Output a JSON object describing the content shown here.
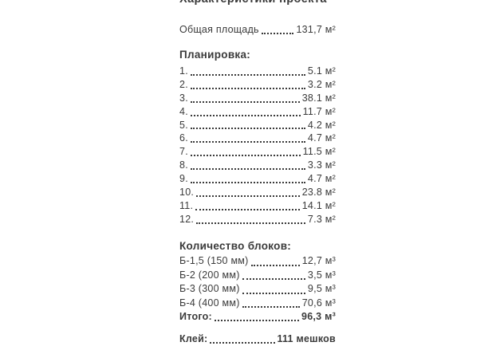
{
  "colors": {
    "text": "#3a3a3a",
    "background": "#ffffff"
  },
  "title": "Характеристики проекта",
  "total_area": {
    "label": "Общая площадь",
    "value": "131,7 м²"
  },
  "planning": {
    "heading": "Планировка:",
    "items": [
      {
        "label": "1.",
        "value": "5.1 м²"
      },
      {
        "label": "2.",
        "value": "3.2 м²"
      },
      {
        "label": "3.",
        "value": "38.1 м²"
      },
      {
        "label": "4.",
        "value": "11.7 м²"
      },
      {
        "label": "5.",
        "value": "4.2 м²"
      },
      {
        "label": "6.",
        "value": "4.7 м²"
      },
      {
        "label": "7.",
        "value": "11.5 м²"
      },
      {
        "label": "8.",
        "value": "3.3 м²"
      },
      {
        "label": "9.",
        "value": "4.7 м²"
      },
      {
        "label": "10.",
        "value": "23.8 м²"
      },
      {
        "label": "11.",
        "value": "14.1 м²"
      },
      {
        "label": "12.",
        "value": "7.3 м²"
      }
    ]
  },
  "blocks": {
    "heading": "Количество блоков:",
    "items": [
      {
        "label": "Б-1,5 (150 мм)",
        "value": "12,7 м³"
      },
      {
        "label": "Б-2 (200 мм)",
        "value": "3,5 м³"
      },
      {
        "label": "Б-3 (300 мм)",
        "value": "9,5 м³"
      },
      {
        "label": "Б-4 (400 мм)",
        "value": "70,6 м³"
      }
    ],
    "total": {
      "label": "Итого:",
      "value": "96,3 м³"
    }
  },
  "glue": {
    "label": "Клей:",
    "value": "111 мешков"
  }
}
